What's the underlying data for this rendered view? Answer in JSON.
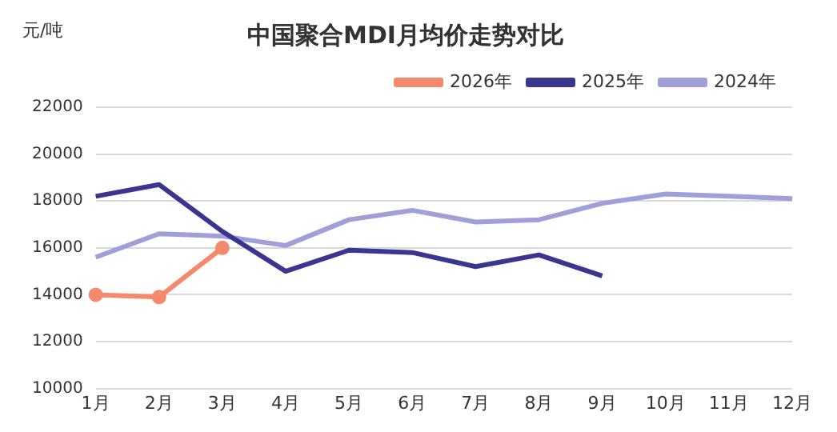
{
  "chart_data": {
    "type": "line",
    "title": "中国聚合MDI月均价走势对比",
    "ylabel": "元/吨",
    "categories": [
      "1月",
      "2月",
      "3月",
      "4月",
      "5月",
      "6月",
      "7月",
      "8月",
      "9月",
      "10月",
      "11月",
      "12月"
    ],
    "series": [
      {
        "name": "2026年",
        "color": "#f4896b",
        "marker": "circle",
        "values": [
          14000,
          13900,
          16000,
          null,
          null,
          null,
          null,
          null,
          null,
          null,
          null,
          null
        ]
      },
      {
        "name": "2025年",
        "color": "#3b3590",
        "marker": "none",
        "values": [
          18200,
          18700,
          16700,
          15000,
          15900,
          15800,
          15200,
          15700,
          14800,
          null,
          null,
          null
        ]
      },
      {
        "name": "2024年",
        "color": "#a09fd8",
        "marker": "none",
        "values": [
          15600,
          16600,
          16500,
          16100,
          17200,
          17600,
          17100,
          17200,
          17900,
          18300,
          18200,
          18100
        ]
      }
    ],
    "ylim": [
      10000,
      22000
    ],
    "yticks": [
      10000,
      12000,
      14000,
      16000,
      18000,
      20000,
      22000
    ],
    "grid": "y",
    "legend": "top right"
  }
}
